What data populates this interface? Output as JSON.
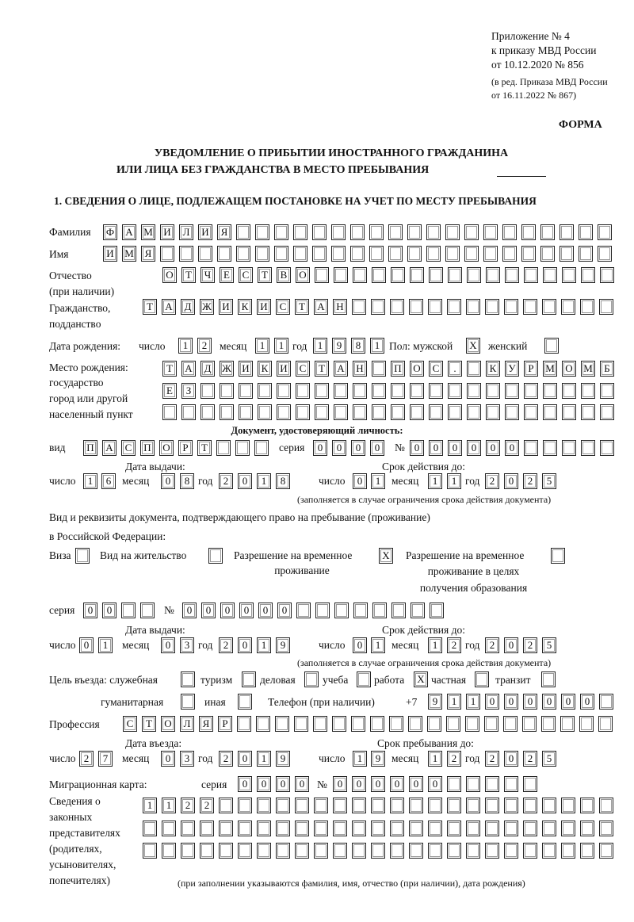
{
  "header": {
    "appendix": [
      "Приложение № 4",
      "к приказу МВД России",
      "от 10.12.2020 № 856"
    ],
    "revision": [
      "(в ред. Приказа МВД России",
      "от 16.11.2022 № 867)"
    ],
    "forma": "ФОРМА",
    "title_1": "УВЕДОМЛЕНИЕ О ПРИБЫТИИ ИНОСТРАННОГО ГРАЖДАНИНА",
    "title_2": "ИЛИ ЛИЦА БЕЗ ГРАЖДАНСТВА В МЕСТО ПРЕБЫВАНИЯ",
    "section_1": "1. СВЕДЕНИЯ О ЛИЦЕ, ПОДЛЕЖАЩЕМ ПОСТАНОВКЕ НА УЧЕТ ПО МЕСТУ ПРЕБЫВАНИЯ"
  },
  "person": {
    "surname_label": "Фамилия",
    "surname": "ФАМИЛИЯ",
    "name_label": "Имя",
    "name": "ИМЯ",
    "patronymic_label": "Отчество",
    "patronymic_note": "(при наличии)",
    "patronymic": "ОТЧЕСТВО",
    "citizenship_label": "Гражданство,",
    "citizenship_label_2": "подданство",
    "citizenship": "ТАДЖИКИСТАН",
    "birth_label": "Дата рождения:",
    "day_label": "число",
    "month_label": "месяц",
    "year_label": "год",
    "birth_day": "12",
    "birth_month": "11",
    "birth_year": "1981",
    "sex_label": "Пол: мужской",
    "female_label": "женский",
    "male": "X",
    "female": "",
    "birthplace_labels": [
      "Место рождения:",
      "государство",
      "город или другой",
      "населенный пункт"
    ],
    "birthplace_1": "ТАДЖИКИСТАН ПОС. КУРМОМБ",
    "birthplace_2": "ЕЗ",
    "birthplace_3": ""
  },
  "id_doc": {
    "heading": "Документ, удостоверяющий личность:",
    "kind_label": "вид",
    "kind": "ПАСПОРТ",
    "series_label": "серия",
    "series": "0000",
    "number_label": "№",
    "number": "000000",
    "issue_label": "Дата выдачи:",
    "valid_label": "Срок действия до:",
    "day_label": "число",
    "month_label": "месяц",
    "year_label": "год",
    "issue_day": "16",
    "issue_month": "08",
    "issue_year": "2018",
    "valid_day": "01",
    "valid_month": "11",
    "valid_year": "2025",
    "valid_note": "(заполняется в случае ограничения срока действия документа)"
  },
  "stay_doc": {
    "heading_1": "Вид и реквизиты документа, подтверждающего право на пребывание (проживание)",
    "heading_2": "в Российской Федерации:",
    "visa_label": "Виза",
    "visa": "",
    "residence_label": "Вид на жительство",
    "residence": "",
    "temp_label_1": "Разрешение на временное",
    "temp_label_2": "проживание",
    "temp": "X",
    "edu_label_1": "Разрешение на временное",
    "edu_label_2": "проживание в целях",
    "edu_label_3": "получения образования",
    "edu": "",
    "series_label": "серия",
    "series": "00",
    "number_label": "№",
    "number": "000000",
    "issue_label": "Дата выдачи:",
    "valid_label": "Срок действия до:",
    "day_label": "число",
    "month_label": "месяц",
    "year_label": "год",
    "issue_day": "01",
    "issue_month": "03",
    "issue_year": "2019",
    "valid_day": "01",
    "valid_month": "12",
    "valid_year": "2025",
    "valid_note": "(заполняется в случае ограничения срока действия документа)"
  },
  "purpose": {
    "label": "Цель въезда: служебная",
    "service": "",
    "tourism_label": "туризм",
    "tourism": "",
    "business_label": "деловая",
    "business": "",
    "study_label": "учеба",
    "study": "",
    "work_label": "работа",
    "work": "X",
    "private_label": "частная",
    "private": "",
    "transit_label": "транзит",
    "transit": "",
    "humanitarian_label": "гуманитарная",
    "humanitarian": "",
    "other_label": "иная",
    "other": "",
    "phone_label": "Телефон (при наличии)",
    "phone_prefix": "+7",
    "phone": "911000000"
  },
  "profession": {
    "label": "Профессия",
    "value": "СТОЛЯР"
  },
  "entry": {
    "entry_label": "Дата въезда:",
    "stay_label": "Срок пребывания до:",
    "day_label": "число",
    "month_label": "месяц",
    "year_label": "год",
    "entry_day": "27",
    "entry_month": "03",
    "entry_year": "2019",
    "stay_day": "19",
    "stay_month": "12",
    "stay_year": "2025"
  },
  "migration": {
    "label": "Миграционная карта:",
    "series_label": "серия",
    "series": "0000",
    "number_label": "№",
    "number": "000000"
  },
  "representatives": {
    "labels": [
      "Сведения о",
      "законных",
      "представителях",
      "(родителях,",
      "усыновителях,",
      "попечителях)"
    ],
    "row_1": "1122",
    "row_2": "",
    "row_3": "",
    "note": "(при заполнении указываются фамилия, имя, отчество (при наличии), дата рождения)"
  }
}
